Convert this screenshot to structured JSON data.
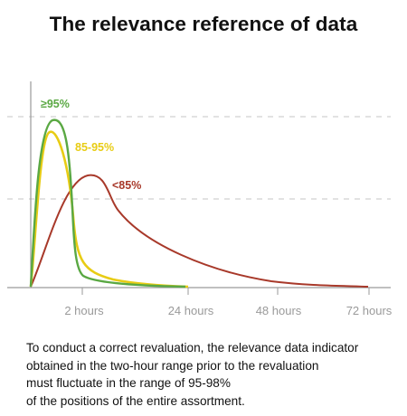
{
  "chart_data": {
    "type": "line",
    "title": "The relevance reference of data",
    "x_tick_labels": [
      "2 hours",
      "24 hours",
      "48 hours",
      "72 hours"
    ],
    "grid": "horizontal dashed",
    "series": [
      {
        "name": "≥95%",
        "color": "#5aa843"
      },
      {
        "name": "85-95%",
        "color": "#e8cc14"
      },
      {
        "name": "<85%",
        "color": "#a8392a"
      }
    ]
  },
  "caption": [
    "To conduct a correct revaluation, the relevance data indicator",
    "obtained in the two-hour range prior to the revaluation",
    "must fluctuate in the range of 95-98%",
    "of the positions of the entire assortment."
  ]
}
